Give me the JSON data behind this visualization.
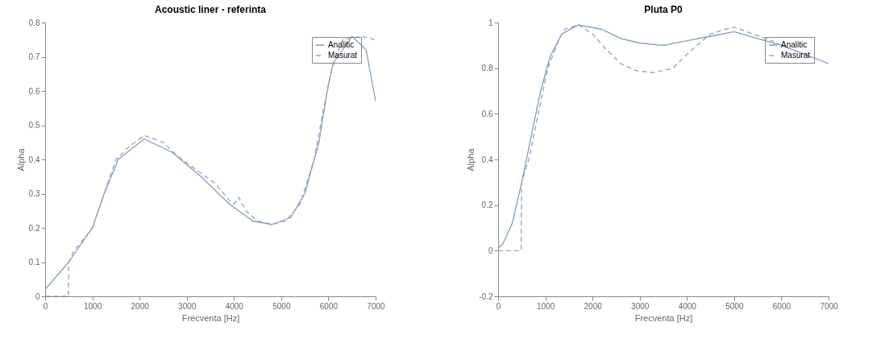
{
  "chart_data": [
    {
      "type": "line",
      "title": "Acoustic liner - referinta",
      "xlabel": "Frecventa [Hz]",
      "ylabel": "Alpha",
      "xlim": [
        0,
        7000
      ],
      "xticks": [
        0,
        1000,
        2000,
        3000,
        4000,
        5000,
        6000,
        7000
      ],
      "ylim": [
        0,
        0.8
      ],
      "yticks": [
        0,
        0.1,
        0.2,
        0.3,
        0.4,
        0.5,
        0.6,
        0.7,
        0.8
      ],
      "legend": "top right",
      "series": [
        {
          "name": "Analitic",
          "color": "#7f9cc6",
          "line_style": "solid",
          "x": [
            0,
            500,
            1000,
            1250,
            1550,
            2100,
            2700,
            3300,
            3900,
            4400,
            4800,
            5200,
            5500,
            5800,
            6000,
            6100,
            6500,
            6800,
            7000
          ],
          "values": [
            0.02,
            0.1,
            0.2,
            0.3,
            0.4,
            0.46,
            0.42,
            0.35,
            0.27,
            0.22,
            0.21,
            0.23,
            0.3,
            0.45,
            0.62,
            0.68,
            0.76,
            0.72,
            0.57
          ]
        },
        {
          "name": "Masurat",
          "color": "#9aa3ae",
          "line_style": "dashed",
          "x": [
            0,
            490,
            500,
            600,
            1000,
            1250,
            1500,
            1800,
            2100,
            2500,
            2800,
            3200,
            3600,
            3900,
            4000,
            4100,
            4250,
            4500,
            4800,
            5100,
            5400,
            5700,
            5900,
            6100,
            6300,
            6700,
            7000
          ],
          "values": [
            0,
            0,
            0.1,
            0.13,
            0.2,
            0.3,
            0.4,
            0.44,
            0.47,
            0.45,
            0.41,
            0.37,
            0.33,
            0.28,
            0.27,
            0.29,
            0.25,
            0.22,
            0.21,
            0.22,
            0.27,
            0.4,
            0.55,
            0.68,
            0.75,
            0.76,
            0.75
          ]
        }
      ]
    },
    {
      "type": "line",
      "title": "Pluta P0",
      "xlabel": "Frecventa [Hz]",
      "ylabel": "Alpha",
      "xlim": [
        0,
        7000
      ],
      "xticks": [
        0,
        1000,
        2000,
        3000,
        4000,
        5000,
        6000,
        7000
      ],
      "ylim": [
        -0.2,
        1
      ],
      "yticks": [
        -0.2,
        0,
        0.2,
        0.4,
        0.6,
        0.8,
        1
      ],
      "legend": "top right",
      "series": [
        {
          "name": "Analitic",
          "color": "#7f9cc6",
          "line_style": "solid",
          "x": [
            0,
            100,
            300,
            500,
            700,
            900,
            1100,
            1350,
            1700,
            2200,
            2600,
            3000,
            3500,
            4000,
            4500,
            5000,
            5500,
            6000,
            6500,
            7000
          ],
          "values": [
            0.01,
            0.03,
            0.12,
            0.3,
            0.5,
            0.7,
            0.85,
            0.95,
            0.99,
            0.97,
            0.93,
            0.91,
            0.9,
            0.92,
            0.94,
            0.96,
            0.93,
            0.9,
            0.86,
            0.82
          ]
        },
        {
          "name": "Masurat",
          "color": "#9aa3ae",
          "line_style": "dashed",
          "x": [
            0,
            490,
            500,
            650,
            850,
            1050,
            1300,
            1400,
            1700,
            2000,
            2300,
            2600,
            2900,
            3300,
            3700,
            4100,
            4500,
            4800,
            5000,
            5400,
            5800,
            6000
          ],
          "values": [
            0,
            0,
            0.3,
            0.4,
            0.6,
            0.8,
            0.93,
            0.97,
            0.99,
            0.95,
            0.88,
            0.82,
            0.79,
            0.78,
            0.8,
            0.88,
            0.95,
            0.97,
            0.98,
            0.95,
            0.92,
            0.9
          ]
        }
      ]
    }
  ]
}
